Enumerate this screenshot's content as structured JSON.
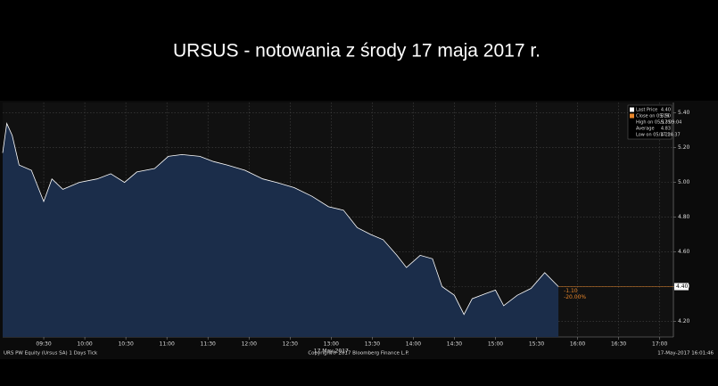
{
  "chart_data": {
    "type": "area",
    "title": "URSUS  - notowania z środy 17 maja 2017 r.",
    "x": [
      "09:00",
      "09:03",
      "09:07",
      "09:12",
      "09:21",
      "09:30",
      "09:36",
      "09:44",
      "09:56",
      "10:09",
      "10:19",
      "10:29",
      "10:38",
      "10:51",
      "11:01",
      "11:11",
      "11:24",
      "11:34",
      "11:44",
      "11:57",
      "12:10",
      "12:20",
      "12:33",
      "12:46",
      "12:58",
      "13:09",
      "13:19",
      "13:29",
      "13:38",
      "13:48",
      "13:55",
      "14:05",
      "14:14",
      "14:21",
      "14:30",
      "14:37",
      "14:43",
      "14:53",
      "15:00",
      "15:06",
      "15:16",
      "15:26",
      "15:36",
      "15:46"
    ],
    "series": [
      {
        "name": "Last Price",
        "color": "#ffffff",
        "values": [
          5.17,
          5.34,
          5.27,
          5.1,
          5.07,
          4.89,
          5.02,
          4.96,
          5.0,
          5.02,
          5.05,
          5.0,
          5.06,
          5.08,
          5.15,
          5.16,
          5.15,
          5.12,
          5.1,
          5.07,
          5.02,
          5.0,
          4.97,
          4.92,
          4.86,
          4.84,
          4.74,
          4.7,
          4.67,
          4.58,
          4.51,
          4.58,
          4.56,
          4.4,
          4.35,
          4.24,
          4.33,
          4.36,
          4.38,
          4.29,
          4.35,
          4.39,
          4.48,
          4.4
        ]
      }
    ],
    "xlim": [
      "09:00",
      "17:10"
    ],
    "xticks": [
      "09:30",
      "10:00",
      "10:30",
      "11:00",
      "11:30",
      "12:00",
      "12:30",
      "13:00",
      "13:30",
      "14:00",
      "14:30",
      "15:00",
      "15:30",
      "16:00",
      "16:30",
      "17:00"
    ],
    "x_date_label": "17 May 2017",
    "ylim": [
      4.11,
      5.46
    ],
    "yticks": [
      {
        "value": 4.2,
        "label": "4.20"
      },
      {
        "value": 4.4,
        "label": "4.40"
      },
      {
        "value": 4.6,
        "label": "4.60"
      },
      {
        "value": 4.8,
        "label": "4.80"
      },
      {
        "value": 5.0,
        "label": "5.00"
      },
      {
        "value": 5.2,
        "label": "5.20"
      },
      {
        "value": 5.4,
        "label": "5.40"
      }
    ],
    "last_price_tag": {
      "value": 4.4,
      "label": "4.40"
    },
    "change_labels": [
      "-1.10",
      "-20.00%"
    ],
    "change_color": "#e8862a",
    "legend": [
      {
        "label": "Last Price",
        "value": "4.40"
      },
      {
        "label": "Close on 05/16",
        "value": "5.50"
      },
      {
        "label": "High on 05/17 09:04",
        "value": "5.35"
      },
      {
        "label": "Average",
        "value": "4.83"
      },
      {
        "label": "Low on 05/17 14:37",
        "value": "4.22"
      }
    ],
    "grid": true,
    "footer": [
      "URS PW Equity (Ursus SA) 1 Days Tick",
      "Copyright® 2017 Bloomberg Finance L.P.",
      "17-May-2017 16:01:46"
    ]
  }
}
